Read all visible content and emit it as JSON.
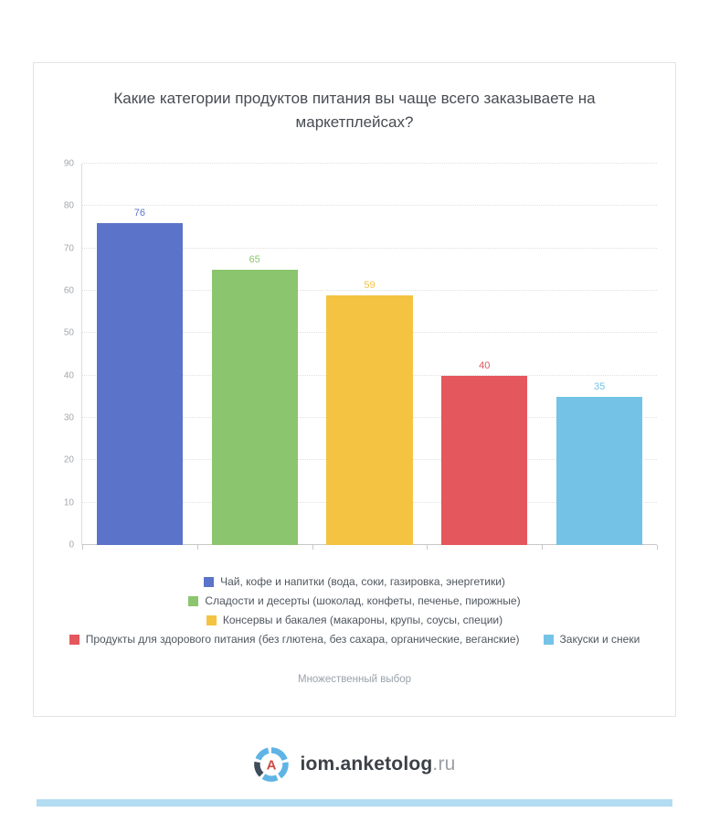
{
  "chart": {
    "title": "Какие категории продуктов питания вы чаще всего заказываете на маркетплейсах?",
    "subtitle": "Множественный выбор"
  },
  "chart_data": {
    "type": "bar",
    "title": "Какие категории продуктов питания вы чаще всего заказываете на маркетплейсах?",
    "categories": [
      "Чай, кофе и напитки (вода, соки, газировка, энергетики)",
      "Сладости и десерты (шоколад, конфеты, печенье, пирожные)",
      "Консервы и бакалея (макароны, крупы, соусы, специи)",
      "Продукты для здорового питания (без глютена, без сахара, органические, веганские)",
      "Закуски и снеки"
    ],
    "values": [
      76,
      65,
      59,
      40,
      35
    ],
    "colors": [
      "#5b74c9",
      "#8bc56e",
      "#f5c342",
      "#e4575c",
      "#74c3e6"
    ],
    "xlabel": "",
    "ylabel": "",
    "ylim": [
      0,
      90
    ],
    "y_ticks": [
      0,
      10,
      20,
      30,
      40,
      50,
      60,
      70,
      80,
      90
    ],
    "grid": true,
    "legend_position": "bottom",
    "legend_rows": [
      [
        0
      ],
      [
        1
      ],
      [
        2
      ],
      [
        3,
        4
      ]
    ],
    "annotation": "Множественный выбор"
  },
  "footer": {
    "brand_main": "iom.anketolog",
    "brand_suffix": ".ru",
    "logo_letter": "A"
  }
}
